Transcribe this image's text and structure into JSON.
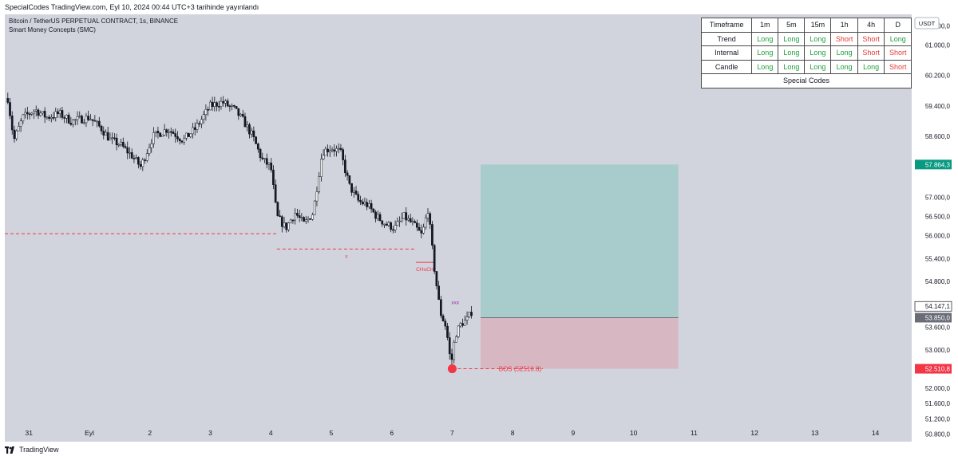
{
  "header": {
    "publish_text": "SpecialCodes TradingView.com, Eyl 10, 2024 00:44 UTC+3 tarihinde yayınlandı"
  },
  "chart_info": {
    "symbol_line": "Bitcoin / TetherUS PERPETUAL CONTRACT, 1s, BINANCE",
    "indicator_line": "Smart Money Concepts (SMC)",
    "currency_label": "USDT"
  },
  "table": {
    "header": [
      "Timeframe",
      "1m",
      "5m",
      "15m",
      "1h",
      "4h",
      "D"
    ],
    "rows": [
      {
        "label": "Trend",
        "values": [
          "Long",
          "Long",
          "Long",
          "Short",
          "Short",
          "Long"
        ]
      },
      {
        "label": "Internal",
        "values": [
          "Long",
          "Long",
          "Long",
          "Long",
          "Short",
          "Short"
        ]
      },
      {
        "label": "Candle",
        "values": [
          "Long",
          "Long",
          "Long",
          "Long",
          "Long",
          "Short"
        ]
      }
    ],
    "footer": "Special Codes"
  },
  "colors": {
    "background": "#d1d4dc",
    "candle": "#131722",
    "long_text": "#1e9e3a",
    "short_text": "#e53935",
    "profit_zone": "#a8cccb",
    "loss_zone": "#d7b8c2",
    "target_badge": "#089981",
    "stop_badge": "#f23645",
    "entry_badge": "#6a6d78",
    "dashed_line": "#f23645"
  },
  "footer": {
    "brand": "TradingView"
  },
  "chart_data": {
    "type": "candlestick",
    "title": "Bitcoin / TetherUS PERPETUAL CONTRACT, 1s, BINANCE",
    "xlabel": "",
    "ylabel": "",
    "ylim": [
      50600,
      61800
    ],
    "y_ticks": [
      "61.500,0",
      "61.000,0",
      "60.200,0",
      "59.400,0",
      "58.600,0",
      "57.000,0",
      "56.500,0",
      "56.000,0",
      "55.400,0",
      "54.800,0",
      "53.600,0",
      "53.000,0",
      "52.000,0",
      "51.600,0",
      "51.200,0",
      "50.800,0"
    ],
    "y_tick_values": [
      61500,
      61000,
      60200,
      59400,
      58600,
      57000,
      56500,
      56000,
      55400,
      54800,
      53600,
      53000,
      52000,
      51600,
      51200,
      50800
    ],
    "x_ticks": [
      "31",
      "Eyl",
      "2",
      "3",
      "4",
      "5",
      "6",
      "7",
      "8",
      "9",
      "10",
      "11",
      "12",
      "13",
      "14"
    ],
    "x_tick_days": [
      0,
      1,
      2,
      3,
      4,
      5,
      6,
      7,
      8,
      9,
      10,
      11,
      12,
      13,
      14
    ],
    "x_range_days": [
      -0.4,
      14.6
    ],
    "series": [
      {
        "name": "BTCUSDT",
        "close_path": [
          [
            -0.35,
            59600
          ],
          [
            -0.25,
            58500
          ],
          [
            -0.1,
            59100
          ],
          [
            0.1,
            59300
          ],
          [
            0.3,
            59100
          ],
          [
            0.5,
            59200
          ],
          [
            0.7,
            59000
          ],
          [
            1.0,
            59100
          ],
          [
            1.2,
            58800
          ],
          [
            1.35,
            58500
          ],
          [
            1.5,
            58400
          ],
          [
            1.7,
            58100
          ],
          [
            1.85,
            57800
          ],
          [
            2.05,
            58600
          ],
          [
            2.3,
            58800
          ],
          [
            2.55,
            58500
          ],
          [
            2.75,
            58800
          ],
          [
            3.0,
            59400
          ],
          [
            3.2,
            59500
          ],
          [
            3.4,
            59300
          ],
          [
            3.55,
            59000
          ],
          [
            3.7,
            58600
          ],
          [
            3.85,
            58000
          ],
          [
            4.0,
            57800
          ],
          [
            4.1,
            56500
          ],
          [
            4.25,
            56200
          ],
          [
            4.4,
            56600
          ],
          [
            4.55,
            56300
          ],
          [
            4.7,
            56600
          ],
          [
            4.85,
            58200
          ],
          [
            5.0,
            58300
          ],
          [
            5.15,
            58200
          ],
          [
            5.3,
            57300
          ],
          [
            5.45,
            56900
          ],
          [
            5.6,
            56800
          ],
          [
            5.75,
            56500
          ],
          [
            5.9,
            56300
          ],
          [
            6.05,
            56200
          ],
          [
            6.2,
            56500
          ],
          [
            6.35,
            56300
          ],
          [
            6.5,
            56000
          ],
          [
            6.6,
            56700
          ],
          [
            6.7,
            55200
          ],
          [
            6.8,
            54000
          ],
          [
            6.9,
            53600
          ],
          [
            6.98,
            52600
          ],
          [
            7.05,
            53400
          ],
          [
            7.15,
            53700
          ],
          [
            7.25,
            53800
          ],
          [
            7.35,
            54100
          ]
        ]
      }
    ],
    "levels": [
      {
        "label": "",
        "price": 56050,
        "from_day": -0.4,
        "to_day": 4.1,
        "style": "dashed"
      },
      {
        "label": "x",
        "price": 55650,
        "from_day": 4.1,
        "to_day": 6.4,
        "style": "dashed"
      },
      {
        "label": "CHoCH",
        "price": 55300,
        "from_day": 6.4,
        "to_day": 6.7,
        "style": "solid"
      },
      {
        "label": "BOS (52510.8)",
        "price": 52510.8,
        "from_day": 7.0,
        "to_day": 8.5,
        "style": "dashed"
      }
    ],
    "annotations": [
      {
        "label": "xxx",
        "day": 7.05,
        "price": 54200
      }
    ],
    "position": {
      "from_day": 7.47,
      "to_day": 10.74,
      "target": 57864.3,
      "entry": 53850.0,
      "stop": 52510.8
    },
    "price_badges": [
      {
        "label": "57.864,3",
        "value": 57864.3,
        "kind": "target"
      },
      {
        "label": "54.147,1",
        "value": 54147.1,
        "kind": "last"
      },
      {
        "label": "53.850,0",
        "value": 53850.0,
        "kind": "entry"
      },
      {
        "label": "52.510,8",
        "value": 52510.8,
        "kind": "stop"
      }
    ]
  }
}
